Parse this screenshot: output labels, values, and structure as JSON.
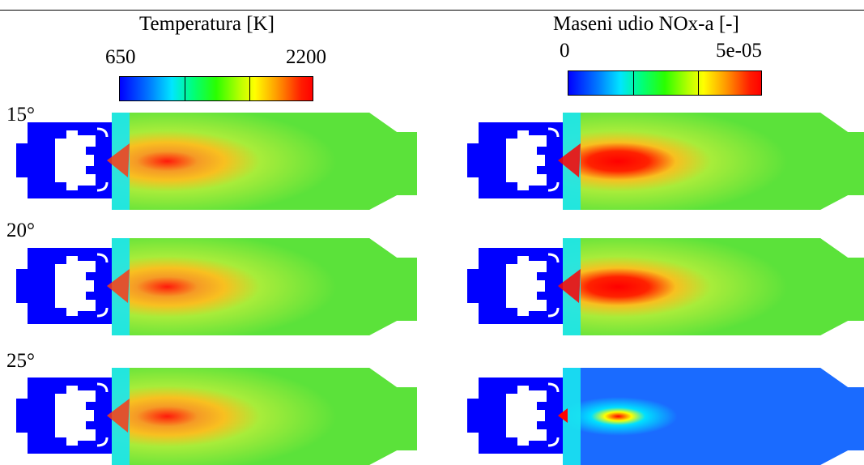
{
  "header": {
    "left": "",
    "right": ""
  },
  "legends": {
    "temperature": {
      "title": "Temperatura [K]",
      "min_label": "650",
      "max_label": "2200",
      "min": 650,
      "max": 2200
    },
    "nox": {
      "title": "Maseni udio NOx-a [-]",
      "min_label": "0",
      "max_label": "5e-05",
      "min": 0,
      "max": 5e-05
    }
  },
  "rows": [
    {
      "label": "15°"
    },
    {
      "label": "20°"
    },
    {
      "label": "25°"
    }
  ],
  "colors": {
    "colormap": [
      "#0000ff",
      "#00b4ff",
      "#00ffff",
      "#00ff00",
      "#b4ff00",
      "#ffff00",
      "#ff8000",
      "#ff0000"
    ],
    "solid": "#0000ff",
    "field_green": "#5be23a",
    "field_yellowgreen": "#a8ec3a",
    "hot_orange": "#f59a26",
    "hot_red": "#ff1a0a",
    "low_blue": "#1a6bff"
  }
}
